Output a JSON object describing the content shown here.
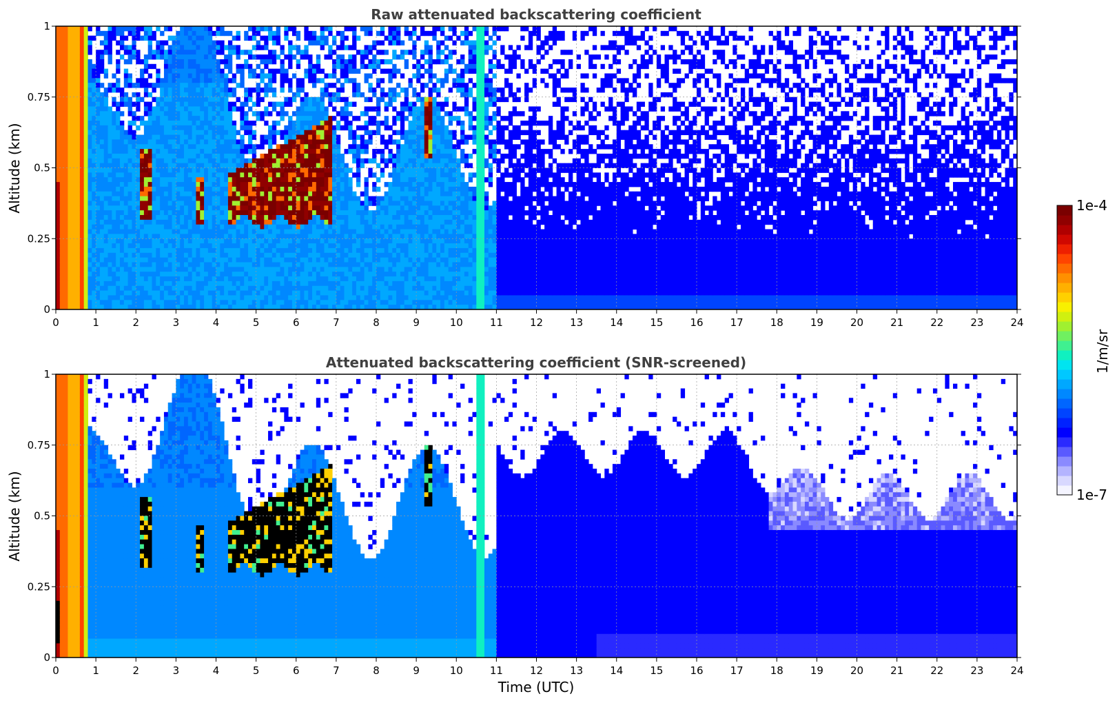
{
  "colorbar": {
    "top_label": "1e-4",
    "bottom_label": "1e-7",
    "unit_label": "1/m/sr",
    "colors": [
      "#f4f4ff",
      "#d8d8ff",
      "#b4b4ff",
      "#8a8aff",
      "#5a5aff",
      "#2a2aff",
      "#0000ff",
      "#0022ff",
      "#0044ff",
      "#0066ff",
      "#0088ff",
      "#00a8ff",
      "#00c8ff",
      "#00e4f0",
      "#10f0c0",
      "#40f090",
      "#70f060",
      "#a0f030",
      "#d0f010",
      "#f8f000",
      "#ffd000",
      "#ffb000",
      "#ff9000",
      "#ff6a00",
      "#ff4400",
      "#ee2000",
      "#d00800",
      "#b00000",
      "#900000",
      "#7a0000"
    ]
  },
  "chart_data": [
    {
      "type": "heatmap",
      "title": "Raw attenuated backscattering coefficient",
      "xlabel": "",
      "ylabel": "Altitude (km)",
      "xlim": [
        0,
        24
      ],
      "ylim": [
        0,
        1
      ],
      "xticks": [
        "0",
        "1",
        "2",
        "3",
        "4",
        "5",
        "6",
        "7",
        "8",
        "9",
        "10",
        "11",
        "12",
        "13",
        "14",
        "15",
        "16",
        "17",
        "18",
        "19",
        "20",
        "21",
        "22",
        "23",
        "24"
      ],
      "yticks": [
        "0",
        "0.25",
        "0.5",
        "0.75",
        "1"
      ],
      "grid": true,
      "features": [
        {
          "time_utc": [
            0.0,
            0.75
          ],
          "alt_km": [
            0,
            1
          ],
          "level": "high (aerosol / near-field)"
        },
        {
          "time_utc": [
            2.05,
            2.4
          ],
          "alt_km": [
            0.35,
            0.55
          ],
          "level": "very high (cloud)"
        },
        {
          "time_utc": [
            3.5,
            3.65
          ],
          "alt_km": [
            0.3,
            0.45
          ],
          "level": "high"
        },
        {
          "time_utc": [
            4.3,
            6.9
          ],
          "alt_km": [
            0.3,
            0.7
          ],
          "level": "very high (cloud layer)"
        },
        {
          "time_utc": [
            9.2,
            9.35
          ],
          "alt_km": [
            0.55,
            0.75
          ],
          "level": "high"
        },
        {
          "time_utc": [
            10.5,
            10.7
          ],
          "alt_km": [
            0,
            1
          ],
          "level": "moderate-high (vertical stripe)"
        }
      ]
    },
    {
      "type": "heatmap",
      "title": "Attenuated backscattering coefficient (SNR-screened)",
      "xlabel": "Time (UTC)",
      "ylabel": "Altitude (km)",
      "xlim": [
        0,
        24
      ],
      "ylim": [
        0,
        1
      ],
      "xticks": [
        "0",
        "1",
        "2",
        "3",
        "4",
        "5",
        "6",
        "7",
        "8",
        "9",
        "10",
        "11",
        "12",
        "13",
        "14",
        "15",
        "16",
        "17",
        "18",
        "19",
        "20",
        "21",
        "22",
        "23",
        "24"
      ],
      "yticks": [
        "0",
        "0.25",
        "0.5",
        "0.75",
        "1"
      ],
      "grid": true,
      "colorbar_range": [
        "1e-7",
        "1e-4"
      ],
      "colorbar_unit": "1/m/sr"
    }
  ]
}
